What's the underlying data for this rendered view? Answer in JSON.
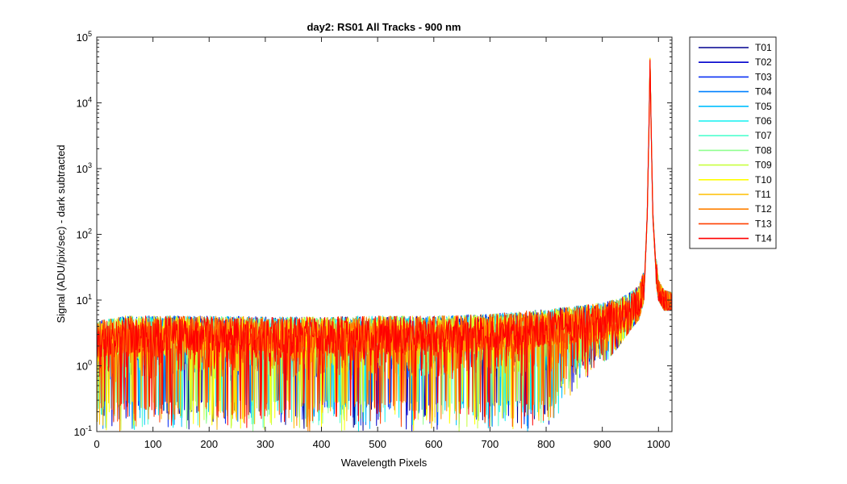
{
  "chart_data": {
    "type": "line",
    "title": "day2: RS01  All Tracks - 900 nm",
    "xlabel": "Wavelength Pixels",
    "ylabel": "Signal (ADU/pix/sec) - dark subtracted",
    "xlim": [
      0,
      1024
    ],
    "ylim": [
      0.1,
      100000
    ],
    "yscale": "log",
    "grid": false,
    "legend_position": "outside-top-right",
    "x_ticks": [
      0,
      100,
      200,
      300,
      400,
      500,
      600,
      700,
      800,
      900,
      1000
    ],
    "y_ticks": [
      {
        "base": "10",
        "exp": "-1",
        "value": 0.1
      },
      {
        "base": "10",
        "exp": "0",
        "value": 1
      },
      {
        "base": "10",
        "exp": "1",
        "value": 10
      },
      {
        "base": "10",
        "exp": "2",
        "value": 100
      },
      {
        "base": "10",
        "exp": "3",
        "value": 1000
      },
      {
        "base": "10",
        "exp": "4",
        "value": 10000
      },
      {
        "base": "10",
        "exp": "5",
        "value": 100000
      }
    ],
    "profile": {
      "x": [
        0,
        50,
        100,
        200,
        300,
        400,
        500,
        600,
        700,
        800,
        850,
        900,
        930,
        950,
        965,
        975,
        980,
        983,
        985,
        987,
        990,
        995,
        1000,
        1010,
        1024
      ],
      "baseline": [
        2.5,
        3.0,
        3.0,
        3.0,
        2.9,
        2.9,
        3.0,
        3.0,
        3.2,
        3.8,
        4.2,
        4.8,
        5.5,
        7.0,
        9.0,
        18,
        200,
        4000,
        45000,
        4000,
        200,
        35,
        15,
        10,
        9
      ],
      "noise_min": [
        0.1,
        0.1,
        0.1,
        0.1,
        0.1,
        0.1,
        0.1,
        0.1,
        0.1,
        0.1,
        0.4,
        1.0,
        2.0,
        3.5,
        5,
        10,
        100,
        2000,
        40000,
        2000,
        100,
        20,
        10,
        7,
        7
      ],
      "noise_max": [
        9,
        9,
        9,
        9,
        9,
        9,
        9,
        9,
        10,
        10,
        10,
        11,
        12,
        14,
        16,
        30,
        300,
        6000,
        50000,
        6000,
        300,
        50,
        20,
        14,
        13
      ]
    },
    "series": [
      {
        "name": "T01",
        "color": "#00008f",
        "peak": 40000
      },
      {
        "name": "T02",
        "color": "#0000cc",
        "peak": 41000
      },
      {
        "name": "T03",
        "color": "#0a30f5",
        "peak": 42000
      },
      {
        "name": "T04",
        "color": "#0080ff",
        "peak": 43000
      },
      {
        "name": "T05",
        "color": "#00bfff",
        "peak": 44000
      },
      {
        "name": "T06",
        "color": "#12f0f0",
        "peak": 45000
      },
      {
        "name": "T07",
        "color": "#50ffd0",
        "peak": 46000
      },
      {
        "name": "T08",
        "color": "#8fff8f",
        "peak": 47000
      },
      {
        "name": "T09",
        "color": "#c8ff40",
        "peak": 48000
      },
      {
        "name": "T10",
        "color": "#ffff00",
        "peak": 48000
      },
      {
        "name": "T11",
        "color": "#ffbf00",
        "peak": 47000
      },
      {
        "name": "T12",
        "color": "#ff8000",
        "peak": 46000
      },
      {
        "name": "T13",
        "color": "#ff4000",
        "peak": 45000
      },
      {
        "name": "T14",
        "color": "#ff0000",
        "peak": 44000
      }
    ]
  }
}
